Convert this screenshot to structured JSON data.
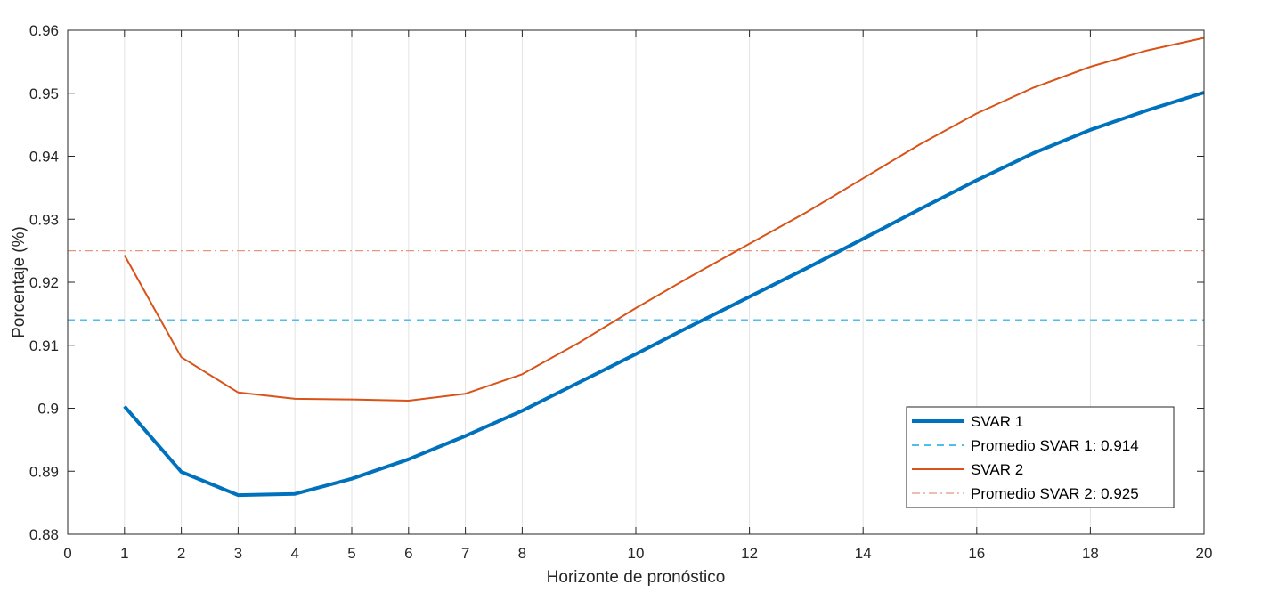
{
  "chart_data": {
    "type": "line",
    "title": "",
    "xlabel": "Horizonte de pronóstico",
    "ylabel": "Porcentaje (%)",
    "xlim": [
      0,
      20
    ],
    "ylim": [
      0.88,
      0.96
    ],
    "grid": "vertical",
    "legend_position": "bottom-right",
    "x_ticks": [
      "0",
      "1",
      "2",
      "3",
      "4",
      "5",
      "6",
      "7",
      "8",
      "10",
      "12",
      "14",
      "16",
      "18",
      "20"
    ],
    "y_ticks": [
      "0.88",
      "0.89",
      "0.9",
      "0.91",
      "0.92",
      "0.93",
      "0.94",
      "0.95",
      "0.96"
    ],
    "x": [
      1,
      2,
      3,
      4,
      5,
      6,
      7,
      8,
      9,
      10,
      11,
      12,
      13,
      14,
      15,
      16,
      17,
      18,
      19,
      20
    ],
    "series": [
      {
        "name": "SVAR 1",
        "color": "#0072BD",
        "style": "solid-thick",
        "values": [
          0.9003,
          0.8899,
          0.8862,
          0.8864,
          0.8888,
          0.8919,
          0.8956,
          0.8996,
          0.9041,
          0.9086,
          0.9132,
          0.9177,
          0.9222,
          0.9269,
          0.9316,
          0.9362,
          0.9405,
          0.9442,
          0.9473,
          0.9501
        ]
      },
      {
        "name": "Promedio SVAR 1: 0.914",
        "color": "#4DBEEE",
        "style": "dashed",
        "constant": 0.914
      },
      {
        "name": "SVAR 2",
        "color": "#D95319",
        "style": "solid",
        "values": [
          0.9243,
          0.9081,
          0.9025,
          0.9015,
          0.9014,
          0.9012,
          0.9023,
          0.9054,
          0.9104,
          0.9159,
          0.9211,
          0.9261,
          0.9311,
          0.9365,
          0.9419,
          0.9468,
          0.9509,
          0.9542,
          0.9568,
          0.9588
        ]
      },
      {
        "name": "Promedio SVAR 2: 0.925",
        "color": "#E8937D",
        "style": "dashdot",
        "constant": 0.925
      }
    ]
  }
}
